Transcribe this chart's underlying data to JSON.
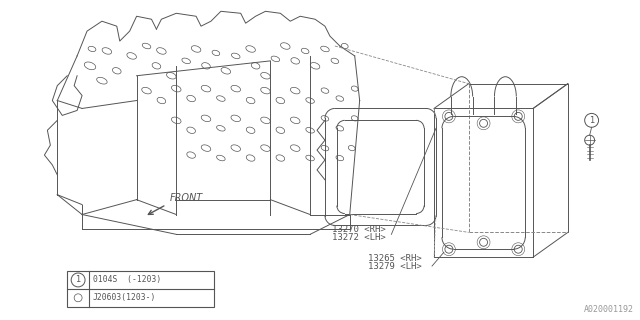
{
  "bg_color": "#ffffff",
  "line_color": "#555555",
  "part_labels": {
    "gasket": [
      "13270 <RH>",
      "13272 <LH>"
    ],
    "cover": [
      "13265 <RH>",
      "13279 <LH>"
    ]
  },
  "legend_row1": "0104S  (-1203)",
  "legend_row2": "J20603(1203-)",
  "front_label": "FRONT",
  "watermark": "A020001192",
  "fig_width": 6.4,
  "fig_height": 3.2,
  "dpi": 100
}
